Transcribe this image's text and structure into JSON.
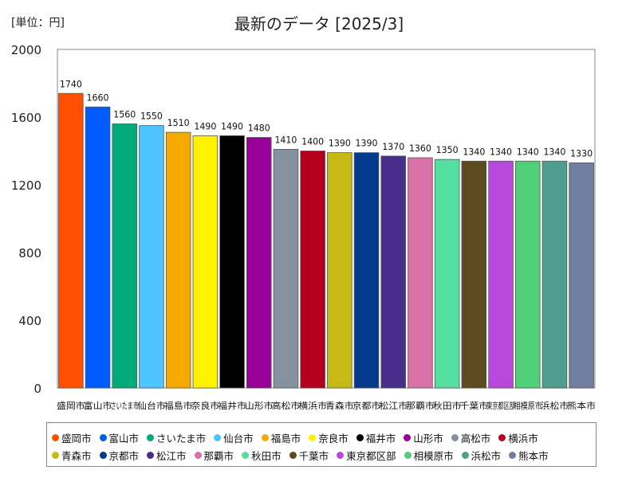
{
  "unit_label": "[単位：円]",
  "title": "最新のデータ [2025/3]",
  "chart_data": {
    "type": "bar",
    "title": "最新のデータ [2025/3]",
    "ylabel": "",
    "xlabel": "",
    "ylim": [
      0,
      2000
    ],
    "yticks": [
      0,
      400,
      800,
      1200,
      1600,
      2000
    ],
    "legend_position": "bottom",
    "categories": [
      "盛岡市",
      "富山市",
      "さいたま市",
      "仙台市",
      "福島市",
      "奈良市",
      "福井市",
      "山形市",
      "高松市",
      "横浜市",
      "青森市",
      "京都市",
      "松江市",
      "那覇市",
      "秋田市",
      "千葉市",
      "東京都区部",
      "相模原市",
      "浜松市",
      "熊本市"
    ],
    "values": [
      1740,
      1660,
      1560,
      1550,
      1510,
      1490,
      1490,
      1480,
      1410,
      1400,
      1390,
      1390,
      1370,
      1360,
      1350,
      1340,
      1340,
      1340,
      1340,
      1330
    ],
    "colors": [
      "#FF4F00",
      "#005CFF",
      "#00AB7A",
      "#4DC3FF",
      "#F6AA00",
      "#FFF100",
      "#000000",
      "#990099",
      "#84919E",
      "#B4001E",
      "#C8BA14",
      "#033A8C",
      "#482E8C",
      "#D970A8",
      "#54E0A0",
      "#5E4A1E",
      "#B847DB",
      "#4FCF78",
      "#4F9D8E",
      "#707FA0"
    ]
  }
}
